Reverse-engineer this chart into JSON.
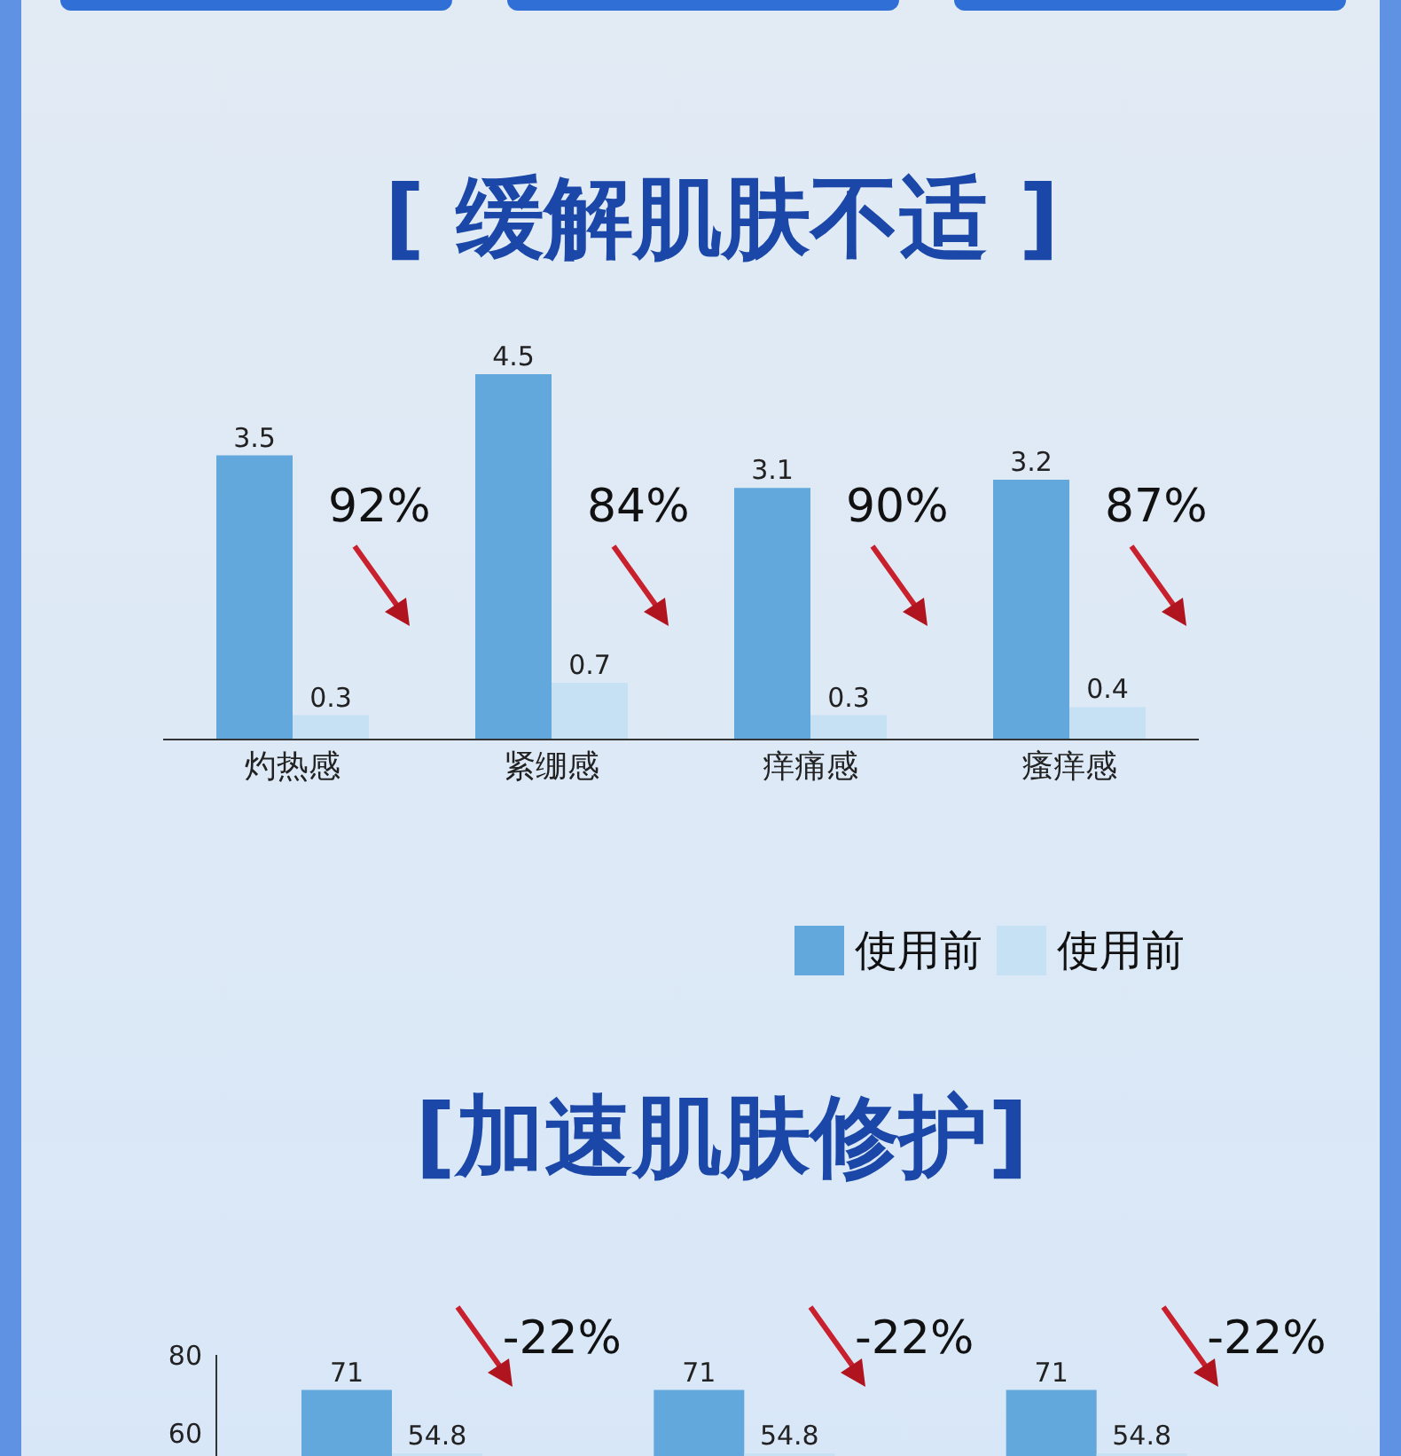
{
  "chart_data": [
    {
      "type": "bar",
      "title": "[ 缓解肌肤不适 ]",
      "categories": [
        "灼热感",
        "紧绷感",
        "痒痛感",
        "瘙痒感"
      ],
      "series": [
        {
          "name": "使用前",
          "color": "#62a8dd",
          "values": [
            3.5,
            4.5,
            3.1,
            3.2
          ]
        },
        {
          "name": "使用前",
          "color": "#c6e0f4",
          "values": [
            0.3,
            0.7,
            0.3,
            0.4
          ]
        }
      ],
      "data_labels": true,
      "legend": "bottom right",
      "annotations": [
        "92%",
        "84%",
        "90%",
        "87%"
      ]
    },
    {
      "type": "bar",
      "title": "[加速肌肤修护]",
      "categories": [
        null,
        null,
        null
      ],
      "series": [
        {
          "color": "#62a8dd",
          "values": [
            71,
            71,
            71
          ]
        },
        {
          "color": "#c6e0f4",
          "values": [
            54.8,
            54.8,
            54.8
          ]
        }
      ],
      "ylim": [
        0,
        80
      ],
      "yticks": [
        60,
        80
      ],
      "data_labels": true,
      "annotations": [
        "-22%",
        "-22%",
        "-22%"
      ]
    }
  ]
}
